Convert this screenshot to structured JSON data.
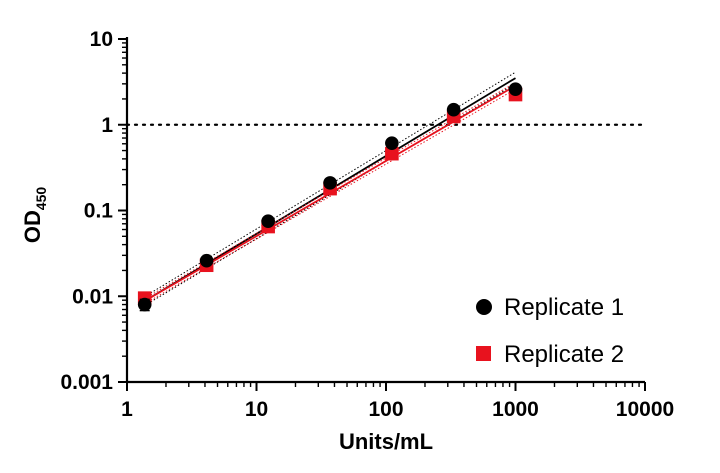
{
  "chart_data": {
    "type": "scatter",
    "x_scale": "log",
    "y_scale": "log",
    "xlabel": "Units/mL",
    "ylabel": "OD",
    "ylabel_subscript": "450",
    "xlim": [
      1,
      10000
    ],
    "ylim": [
      0.001,
      10
    ],
    "x_ticks": [
      1,
      10,
      100,
      1000,
      10000
    ],
    "x_tick_labels": [
      "1",
      "10",
      "100",
      "1000",
      "10000"
    ],
    "y_ticks": [
      0.001,
      0.01,
      0.1,
      1,
      10
    ],
    "y_tick_labels": [
      "0.001",
      "0.01",
      "0.1",
      "1",
      "10"
    ],
    "reference_line": {
      "y": 1,
      "style": "dotted",
      "color": "#000000"
    },
    "legend_position": "bottom-right",
    "grid": false,
    "series": [
      {
        "name": "Replicate 1",
        "marker": "circle",
        "color": "#000000",
        "x": [
          1.37,
          4.12,
          12.3,
          37.0,
          111,
          333,
          1000
        ],
        "y": [
          0.008,
          0.026,
          0.075,
          0.21,
          0.61,
          1.5,
          2.6
        ],
        "error": [
          0.0012,
          0.001,
          0.003,
          0.008,
          0.02,
          0.05,
          0.1
        ],
        "fit": {
          "x_start": 1.37,
          "x_end": 1000,
          "y_start": 0.0088,
          "y_end": 3.5
        },
        "fit_band": {
          "lower": [
            0.0078,
            3.0
          ],
          "upper": [
            0.0099,
            4.1
          ]
        }
      },
      {
        "name": "Replicate 2",
        "marker": "square",
        "color": "#e8121e",
        "x": [
          1.37,
          4.12,
          12.3,
          37.0,
          111,
          333,
          1000
        ],
        "y": [
          0.0095,
          0.023,
          0.065,
          0.18,
          0.46,
          1.25,
          2.25
        ],
        "error": [
          0.0005,
          0.001,
          0.002,
          0.006,
          0.015,
          0.04,
          0.08
        ],
        "fit": {
          "x_start": 1.37,
          "x_end": 1000,
          "y_start": 0.0088,
          "y_end": 2.85
        },
        "fit_band": {
          "lower": [
            0.0082,
            2.6
          ],
          "upper": [
            0.0094,
            3.1
          ]
        }
      }
    ]
  }
}
